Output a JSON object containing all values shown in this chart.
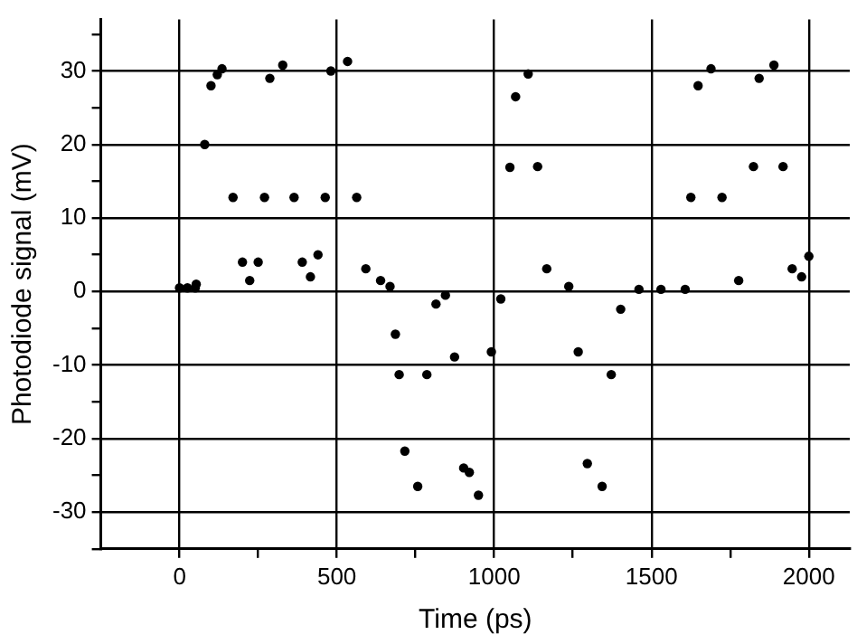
{
  "chart_data": {
    "type": "scatter",
    "xlabel": "Time (ps)",
    "ylabel": "Photodiode signal (mV)",
    "xlim": [
      -250,
      2130
    ],
    "ylim": [
      -35,
      37
    ],
    "xticks": [
      0,
      {
        "value": 250,
        "label": null
      },
      500,
      {
        "value": 750,
        "label": null
      },
      1000,
      {
        "value": 1250,
        "label": null
      },
      1500,
      {
        "value": 1750,
        "label": null
      },
      2000
    ],
    "yticks": [
      {
        "value": -35,
        "label": null
      },
      -30,
      {
        "value": -25,
        "label": null
      },
      -20,
      {
        "value": -15,
        "label": null
      },
      -10,
      {
        "value": -5,
        "label": null
      },
      0,
      {
        "value": 5,
        "label": null
      },
      10,
      {
        "value": 15,
        "label": null
      },
      20,
      {
        "value": 25,
        "label": null
      },
      30,
      {
        "value": 35,
        "label": null
      }
    ],
    "grid": true,
    "marker": "circle",
    "legend": false,
    "series": [
      {
        "color": "#000000",
        "x": [
          0,
          25,
          50,
          53,
          80,
          100,
          120,
          135,
          170,
          200,
          223,
          250,
          270,
          287,
          328,
          364,
          390,
          416,
          440,
          463,
          481,
          534,
          563,
          592,
          639,
          669,
          686,
          698,
          716,
          757,
          786,
          815,
          845,
          874,
          903,
          921,
          950,
          991,
          1021,
          1050,
          1068,
          1108,
          1138,
          1167,
          1237,
          1267,
          1296,
          1343,
          1372,
          1402,
          1460,
          1530,
          1607,
          1625,
          1648,
          1689,
          1724,
          1777,
          1824,
          1842,
          1889,
          1918,
          1947,
          1977,
          2000
        ],
        "values": [
          0.5,
          0.5,
          0.5,
          1,
          20,
          28,
          29.5,
          30.3,
          12.8,
          4,
          1.5,
          4,
          12.8,
          29,
          30.8,
          12.8,
          4,
          2,
          5,
          12.8,
          30,
          31.3,
          12.8,
          3.1,
          1.5,
          0.7,
          -5.8,
          -11.3,
          -21.7,
          -26.5,
          -11.3,
          -1.7,
          -0.5,
          -8.9,
          -24,
          -24.6,
          -27.7,
          -8.2,
          -1,
          16.9,
          26.5,
          29.6,
          17,
          3.1,
          0.7,
          -8.2,
          -23.4,
          -26.5,
          -11.3,
          -2.4,
          0.3,
          0.3,
          0.3,
          12.8,
          28,
          30.3,
          12.8,
          1.5,
          17,
          29,
          30.8,
          17,
          3.1,
          2,
          4.8
        ]
      }
    ]
  }
}
